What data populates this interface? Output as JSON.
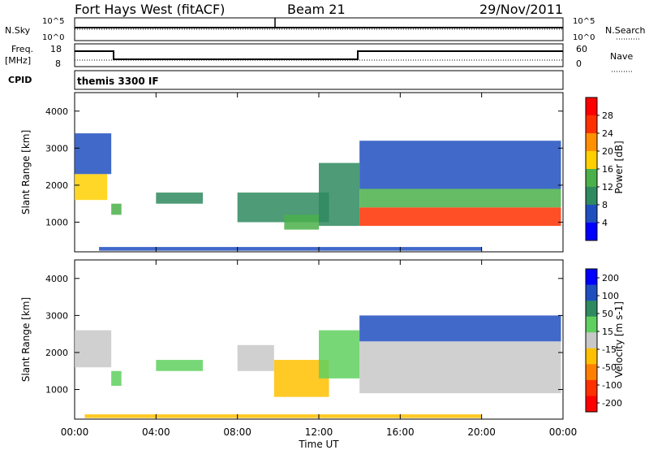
{
  "header": {
    "station": "Fort Hays West (fitACF)",
    "beam": "Beam 21",
    "date": "29/Nov/2011",
    "program": "themis 3300 IF"
  },
  "strips": {
    "nsky_label": "N.Sky",
    "nsky_tick_top": "10^5",
    "nsky_tick_bottom": "10^0",
    "nsearch_label": "N.Search",
    "nsearch_tick_top": "10^5",
    "nsearch_tick_bottom": "10^0",
    "freq_label_line1": "Freq.",
    "freq_label_line2": "[MHz]",
    "freq_ticks": [
      "18",
      "8"
    ],
    "nave_label": "Nave",
    "nave_ticks": [
      "60",
      "0"
    ],
    "cpid_label": "CPID"
  },
  "colors": {
    "power_scale": [
      "#0000ff",
      "#1f4fbf",
      "#2f8a5f",
      "#4ab04a",
      "#ffd000",
      "#ff9000",
      "#ff3000",
      "#ff0000"
    ],
    "velocity_scale": [
      "#0000ff",
      "#1f4fbf",
      "#2f8a5f",
      "#5fd05f",
      "#c8c8c8",
      "#ffc000",
      "#ff8000",
      "#ff3000",
      "#ff0000"
    ],
    "ground_scatter": "#c8c8c8"
  },
  "chart_data": [
    {
      "type": "heatmap",
      "name": "power",
      "ylabel": "Slant Range [km]",
      "yticks": [
        "1000",
        "2000",
        "3000",
        "4000"
      ],
      "ylim": [
        200,
        4500
      ],
      "colorbar_label": "Power [dB]",
      "colorbar_ticks": [
        "4",
        "8",
        "12",
        "16",
        "20",
        "24",
        "28"
      ],
      "colorbar_range": [
        0,
        32
      ],
      "regions": [
        {
          "t0": 0.0,
          "t1": 1.6,
          "r0": 1600,
          "r1": 2300,
          "v": 16
        },
        {
          "t0": 0.0,
          "t1": 1.8,
          "r0": 2300,
          "r1": 3400,
          "v": 6
        },
        {
          "t0": 1.8,
          "t1": 2.3,
          "r0": 1200,
          "r1": 1500,
          "v": 14
        },
        {
          "t0": 4.0,
          "t1": 6.3,
          "r0": 1500,
          "r1": 1800,
          "v": 10
        },
        {
          "t0": 8.0,
          "t1": 12.5,
          "r0": 1000,
          "r1": 1800,
          "v": 9
        },
        {
          "t0": 10.3,
          "t1": 12.0,
          "r0": 800,
          "r1": 1200,
          "v": 14
        },
        {
          "t0": 12.0,
          "t1": 14.0,
          "r0": 900,
          "r1": 2600,
          "v": 8
        },
        {
          "t0": 14.0,
          "t1": 23.9,
          "r0": 900,
          "r1": 1400,
          "v": 24
        },
        {
          "t0": 14.0,
          "t1": 23.9,
          "r0": 1400,
          "r1": 1900,
          "v": 14
        },
        {
          "t0": 14.0,
          "t1": 23.9,
          "r0": 1900,
          "r1": 3200,
          "v": 6
        },
        {
          "t0": 1.2,
          "t1": 20.0,
          "r0": 230,
          "r1": 330,
          "v": 4
        }
      ]
    },
    {
      "type": "heatmap",
      "name": "velocity",
      "xlabel": "Time UT",
      "xticks": [
        "00:00",
        "04:00",
        "08:00",
        "12:00",
        "16:00",
        "20:00",
        "00:00"
      ],
      "xlim": [
        0,
        24
      ],
      "ylabel": "Slant Range [km]",
      "yticks": [
        "1000",
        "2000",
        "3000",
        "4000"
      ],
      "ylim": [
        200,
        4500
      ],
      "colorbar_label": "Velocity [m s-1]",
      "colorbar_ticks": [
        "200",
        "100",
        "50",
        "15",
        "-15",
        "-50",
        "-100",
        "-200"
      ],
      "colorbar_range": [
        -250,
        250
      ],
      "regions": [
        {
          "t0": 0.0,
          "t1": 1.8,
          "r0": 1600,
          "r1": 2600,
          "v": 0
        },
        {
          "t0": 1.8,
          "t1": 2.3,
          "r0": 1100,
          "r1": 1500,
          "v": 60
        },
        {
          "t0": 4.0,
          "t1": 6.3,
          "r0": 1500,
          "r1": 1800,
          "v": 60
        },
        {
          "t0": 8.0,
          "t1": 9.8,
          "r0": 1500,
          "r1": 2200,
          "v": 0
        },
        {
          "t0": 9.8,
          "t1": 12.5,
          "r0": 800,
          "r1": 1800,
          "v": -80
        },
        {
          "t0": 12.0,
          "t1": 14.0,
          "r0": 1300,
          "r1": 2600,
          "v": 40
        },
        {
          "t0": 14.0,
          "t1": 23.9,
          "r0": 900,
          "r1": 2300,
          "v": 0
        },
        {
          "t0": 14.0,
          "t1": 23.9,
          "r0": 2300,
          "r1": 3000,
          "v": 150
        },
        {
          "t0": 0.5,
          "t1": 20.0,
          "r0": 230,
          "r1": 330,
          "v": -60
        }
      ]
    }
  ]
}
